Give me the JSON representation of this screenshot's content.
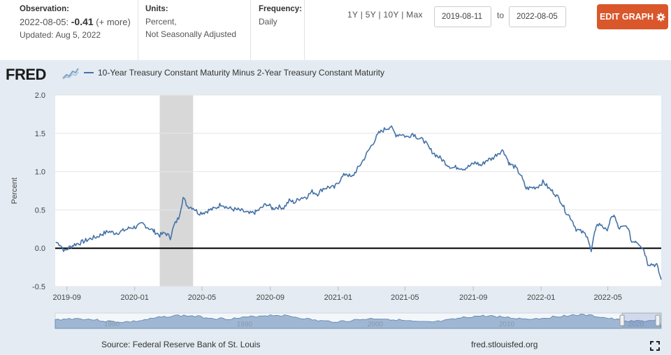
{
  "header": {
    "observation_label": "Observation:",
    "observation_date": "2022-08-05:",
    "observation_value": "-0.41",
    "observation_more": "(+ more)",
    "updated": "Updated: Aug 5, 2022",
    "units_label": "Units:",
    "units_line1": "Percent,",
    "units_line2": "Not Seasonally Adjusted",
    "frequency_label": "Frequency:",
    "frequency_value": "Daily",
    "range_1y": "1Y",
    "range_5y": "5Y",
    "range_10y": "10Y",
    "range_max": "Max",
    "range_sep": "|",
    "date_from": "2019-08-11",
    "date_to_label": "to",
    "date_to": "2022-08-05",
    "edit_button": "EDIT GRAPH"
  },
  "logo_text": "FRED",
  "footer": {
    "source": "Source: Federal Reserve Bank of St. Louis",
    "url": "fred.stlouisfed.org"
  },
  "colors": {
    "series": "#4572a7",
    "recession": "#d8d8d8",
    "accent": "#d9572b",
    "panel": "#e4ebf3"
  },
  "chart_data": {
    "type": "line",
    "title": "10-Year Treasury Constant Maturity Minus 2-Year Treasury Constant Maturity",
    "xlabel": "",
    "ylabel": "Percent",
    "ylim": [
      -0.5,
      2.0
    ],
    "yticks": [
      "-0.5",
      "0.0",
      "0.5",
      "1.0",
      "1.5",
      "2.0"
    ],
    "x_tick_labels": [
      "2019-09",
      "2020-01",
      "2020-05",
      "2020-09",
      "2021-01",
      "2021-05",
      "2021-09",
      "2022-01",
      "2022-05"
    ],
    "x_start": "2019-08-11",
    "x_end": "2022-08-05",
    "recession": {
      "start": "2020-02-15",
      "end": "2020-04-15"
    },
    "zero_line": 0,
    "navigator_labels": [
      "1980",
      "1990",
      "2000",
      "2010",
      "2020"
    ],
    "series": [
      {
        "name": "10-Year Treasury Constant Maturity Minus 2-Year Treasury Constant Maturity",
        "points": [
          [
            "2019-08-12",
            0.08
          ],
          [
            "2019-08-20",
            0.05
          ],
          [
            "2019-08-28",
            -0.04
          ],
          [
            "2019-09-05",
            0.01
          ],
          [
            "2019-09-15",
            0.05
          ],
          [
            "2019-09-25",
            0.07
          ],
          [
            "2019-10-05",
            0.1
          ],
          [
            "2019-10-15",
            0.13
          ],
          [
            "2019-10-25",
            0.15
          ],
          [
            "2019-11-05",
            0.19
          ],
          [
            "2019-11-15",
            0.22
          ],
          [
            "2019-11-25",
            0.2
          ],
          [
            "2019-12-05",
            0.21
          ],
          [
            "2019-12-15",
            0.24
          ],
          [
            "2019-12-25",
            0.27
          ],
          [
            "2020-01-05",
            0.28
          ],
          [
            "2020-01-15",
            0.32
          ],
          [
            "2020-01-25",
            0.27
          ],
          [
            "2020-02-05",
            0.22
          ],
          [
            "2020-02-15",
            0.17
          ],
          [
            "2020-02-25",
            0.2
          ],
          [
            "2020-03-05",
            0.14
          ],
          [
            "2020-03-12",
            0.3
          ],
          [
            "2020-03-20",
            0.4
          ],
          [
            "2020-03-28",
            0.66
          ],
          [
            "2020-04-05",
            0.55
          ],
          [
            "2020-04-15",
            0.53
          ],
          [
            "2020-04-25",
            0.46
          ],
          [
            "2020-05-05",
            0.47
          ],
          [
            "2020-05-15",
            0.5
          ],
          [
            "2020-05-25",
            0.52
          ],
          [
            "2020-06-05",
            0.58
          ],
          [
            "2020-06-15",
            0.53
          ],
          [
            "2020-06-25",
            0.51
          ],
          [
            "2020-07-05",
            0.5
          ],
          [
            "2020-07-15",
            0.48
          ],
          [
            "2020-07-25",
            0.45
          ],
          [
            "2020-08-05",
            0.47
          ],
          [
            "2020-08-15",
            0.52
          ],
          [
            "2020-08-25",
            0.58
          ],
          [
            "2020-09-05",
            0.52
          ],
          [
            "2020-09-15",
            0.54
          ],
          [
            "2020-09-25",
            0.53
          ],
          [
            "2020-10-05",
            0.62
          ],
          [
            "2020-10-15",
            0.6
          ],
          [
            "2020-10-25",
            0.66
          ],
          [
            "2020-11-05",
            0.67
          ],
          [
            "2020-11-15",
            0.74
          ],
          [
            "2020-11-25",
            0.71
          ],
          [
            "2020-12-05",
            0.78
          ],
          [
            "2020-12-15",
            0.8
          ],
          [
            "2020-12-25",
            0.79
          ],
          [
            "2021-01-05",
            0.9
          ],
          [
            "2021-01-15",
            0.98
          ],
          [
            "2021-01-25",
            0.92
          ],
          [
            "2021-02-05",
            1.04
          ],
          [
            "2021-02-15",
            1.15
          ],
          [
            "2021-02-25",
            1.28
          ],
          [
            "2021-03-05",
            1.38
          ],
          [
            "2021-03-15",
            1.5
          ],
          [
            "2021-03-25",
            1.55
          ],
          [
            "2021-04-05",
            1.59
          ],
          [
            "2021-04-15",
            1.48
          ],
          [
            "2021-04-25",
            1.49
          ],
          [
            "2021-05-05",
            1.45
          ],
          [
            "2021-05-15",
            1.5
          ],
          [
            "2021-05-25",
            1.44
          ],
          [
            "2021-06-05",
            1.4
          ],
          [
            "2021-06-15",
            1.29
          ],
          [
            "2021-06-25",
            1.22
          ],
          [
            "2021-07-05",
            1.17
          ],
          [
            "2021-07-15",
            1.1
          ],
          [
            "2021-07-25",
            1.05
          ],
          [
            "2021-08-05",
            1.06
          ],
          [
            "2021-08-15",
            1.04
          ],
          [
            "2021-08-25",
            1.07
          ],
          [
            "2021-09-05",
            1.12
          ],
          [
            "2021-09-15",
            1.08
          ],
          [
            "2021-09-25",
            1.15
          ],
          [
            "2021-10-05",
            1.17
          ],
          [
            "2021-10-15",
            1.24
          ],
          [
            "2021-10-25",
            1.28
          ],
          [
            "2021-11-05",
            1.1
          ],
          [
            "2021-11-15",
            1.06
          ],
          [
            "2021-11-25",
            0.96
          ],
          [
            "2021-12-05",
            0.78
          ],
          [
            "2021-12-15",
            0.79
          ],
          [
            "2021-12-25",
            0.8
          ],
          [
            "2022-01-05",
            0.87
          ],
          [
            "2022-01-15",
            0.78
          ],
          [
            "2022-01-25",
            0.72
          ],
          [
            "2022-02-05",
            0.62
          ],
          [
            "2022-02-15",
            0.47
          ],
          [
            "2022-02-25",
            0.38
          ],
          [
            "2022-03-05",
            0.25
          ],
          [
            "2022-03-15",
            0.21
          ],
          [
            "2022-03-25",
            0.17
          ],
          [
            "2022-04-01",
            -0.05
          ],
          [
            "2022-04-10",
            0.3
          ],
          [
            "2022-04-20",
            0.31
          ],
          [
            "2022-04-28",
            0.22
          ],
          [
            "2022-05-05",
            0.35
          ],
          [
            "2022-05-12",
            0.44
          ],
          [
            "2022-05-20",
            0.26
          ],
          [
            "2022-05-28",
            0.27
          ],
          [
            "2022-06-05",
            0.29
          ],
          [
            "2022-06-13",
            0.08
          ],
          [
            "2022-06-20",
            0.1
          ],
          [
            "2022-06-28",
            0.05
          ],
          [
            "2022-07-05",
            -0.02
          ],
          [
            "2022-07-12",
            -0.2
          ],
          [
            "2022-07-20",
            -0.21
          ],
          [
            "2022-07-28",
            -0.22
          ],
          [
            "2022-08-05",
            -0.41
          ]
        ]
      }
    ]
  }
}
